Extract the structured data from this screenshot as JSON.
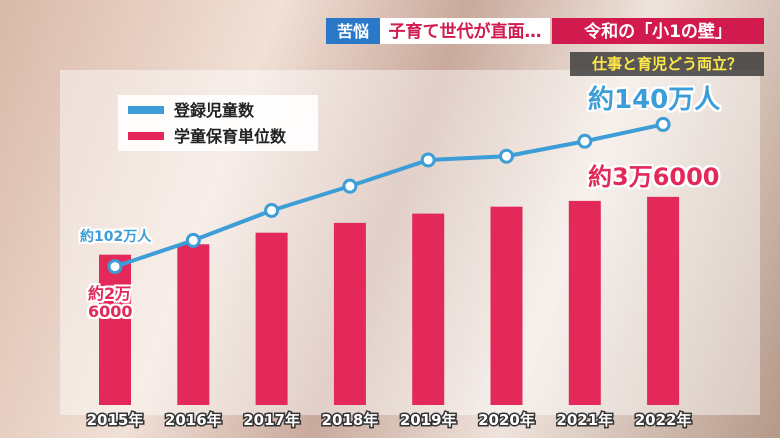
{
  "header": {
    "tag": "苦悩",
    "headline": "子育て世代が直面…",
    "topic": "令和の「小1の壁」",
    "subtitle": "仕事と育児どう両立？"
  },
  "chart_data": {
    "type": "bar-line",
    "categories": [
      "2015年",
      "2016年",
      "2017年",
      "2018年",
      "2019年",
      "2020年",
      "2021年",
      "2022年"
    ],
    "series": [
      {
        "name": "学童保育単位数",
        "color": "#e3285a",
        "type": "bar",
        "values": [
          26000,
          27800,
          29800,
          31500,
          33100,
          34300,
          35300,
          36000
        ],
        "value_labels": [
          "約2万6000",
          null,
          null,
          null,
          null,
          null,
          null,
          "約3万6000"
        ]
      },
      {
        "name": "登録児童数",
        "color": "#3d9dd6",
        "type": "line",
        "axis": "y2",
        "values": [
          102,
          109,
          117,
          123.5,
          130.5,
          131.5,
          135.5,
          140
        ],
        "value_labels": [
          "約102万人",
          null,
          null,
          null,
          null,
          null,
          null,
          "約140万人"
        ]
      }
    ],
    "ylim": [
      0,
      55000
    ],
    "y2lim": [
      65,
      150
    ]
  }
}
